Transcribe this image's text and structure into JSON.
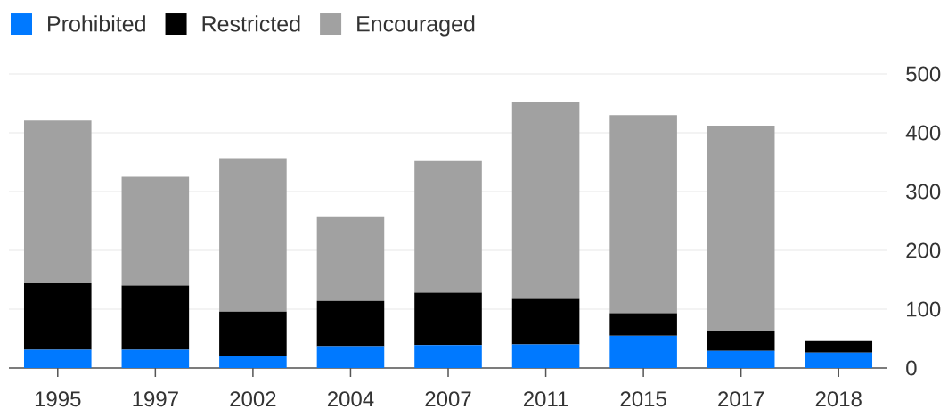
{
  "chart_data": {
    "type": "bar",
    "stacked": true,
    "categories": [
      "1995",
      "1997",
      "2002",
      "2004",
      "2007",
      "2011",
      "2015",
      "2017",
      "2018"
    ],
    "series": [
      {
        "name": "Prohibited",
        "color": "#0079ff",
        "values": [
          31,
          31,
          21,
          37,
          39,
          40,
          55,
          29,
          26
        ]
      },
      {
        "name": "Restricted",
        "color": "#000000",
        "values": [
          113,
          109,
          75,
          77,
          89,
          79,
          38,
          33,
          20
        ]
      },
      {
        "name": "Encouraged",
        "color": "#a1a1a1",
        "values": [
          277,
          185,
          261,
          144,
          224,
          333,
          337,
          350,
          null
        ]
      }
    ],
    "ylim": [
      0,
      500
    ],
    "yticks": [
      0,
      100,
      200,
      300,
      400,
      500
    ],
    "grid": "y",
    "legend": "top left"
  }
}
